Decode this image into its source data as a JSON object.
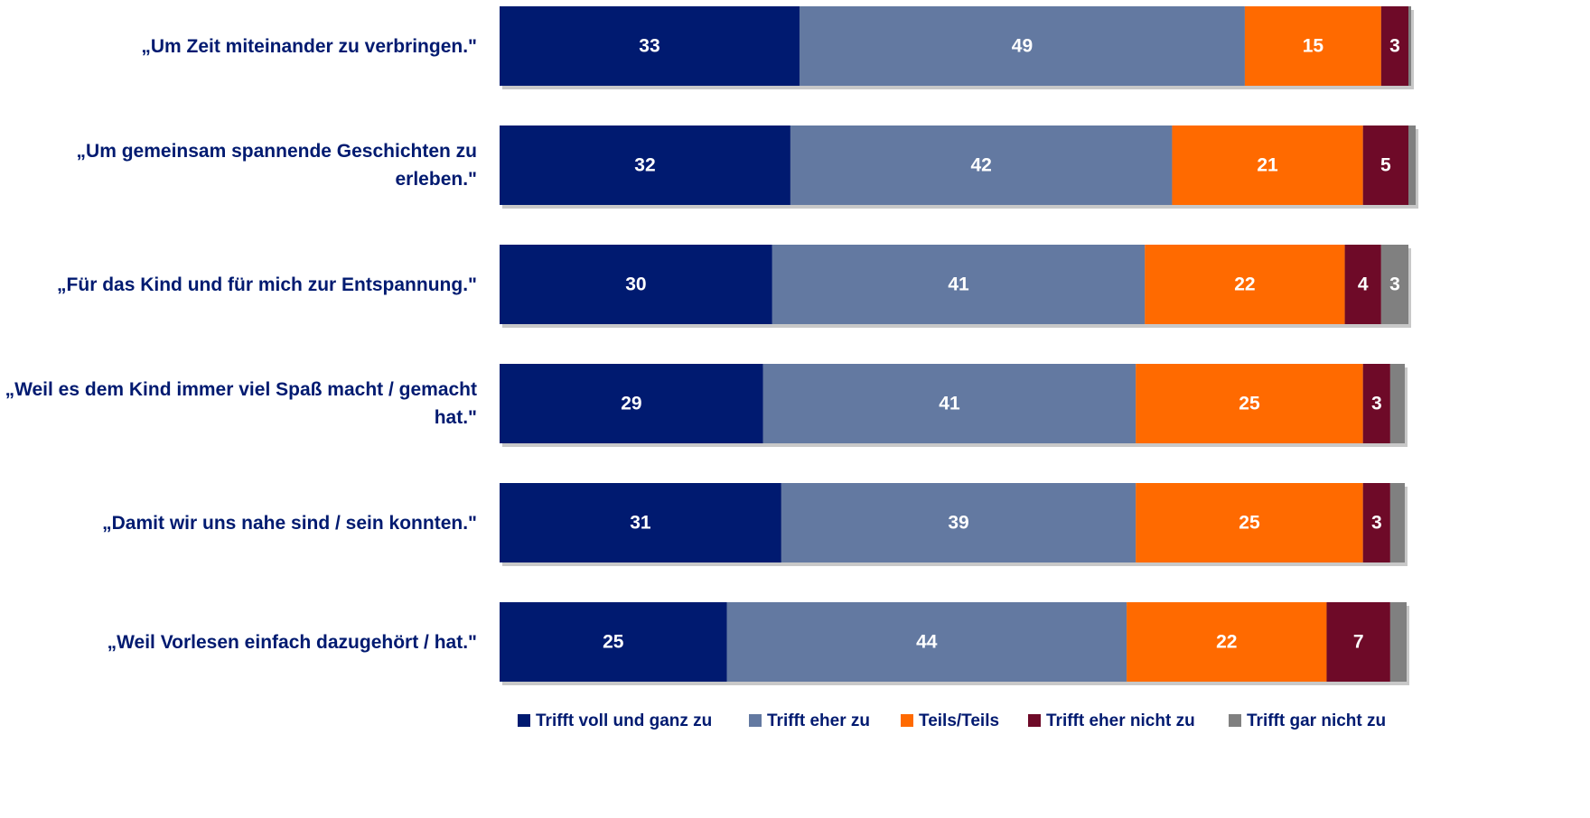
{
  "chart_data": {
    "type": "stacked-bar-horizontal",
    "categories": [
      "„Um Zeit miteinander zu verbringen.\"",
      "„Um gemeinsam spannende Geschichten zu erleben.\"",
      "„Für das Kind und für mich zur Entspannung.\"",
      "„Weil es dem Kind immer viel Spaß macht / gemacht hat.\"",
      "„Damit wir uns nahe sind / sein konnten.\"",
      "„Weil Vorlesen einfach dazugehört / hat.\""
    ],
    "series": [
      {
        "name": "Trifft voll und ganz zu",
        "color": "#001a70",
        "values": [
          33,
          32,
          30,
          29,
          31,
          25
        ]
      },
      {
        "name": "Trifft eher zu",
        "color": "#6379a1",
        "values": [
          49,
          42,
          41,
          41,
          39,
          44
        ]
      },
      {
        "name": "Teils/Teils",
        "color": "#ff6a00",
        "values": [
          15,
          21,
          22,
          25,
          25,
          22
        ]
      },
      {
        "name": "Trifft eher nicht zu",
        "color": "#6e0a28",
        "values": [
          3,
          5,
          4,
          3,
          3,
          7
        ]
      },
      {
        "name": "Trifft gar nicht zu",
        "color": "#808080",
        "values": [
          0.3,
          0.8,
          3,
          1.6,
          1.6,
          1.8
        ],
        "value_labels": [
          null,
          null,
          "3",
          null,
          null,
          null
        ]
      }
    ],
    "legend": "bottom"
  }
}
